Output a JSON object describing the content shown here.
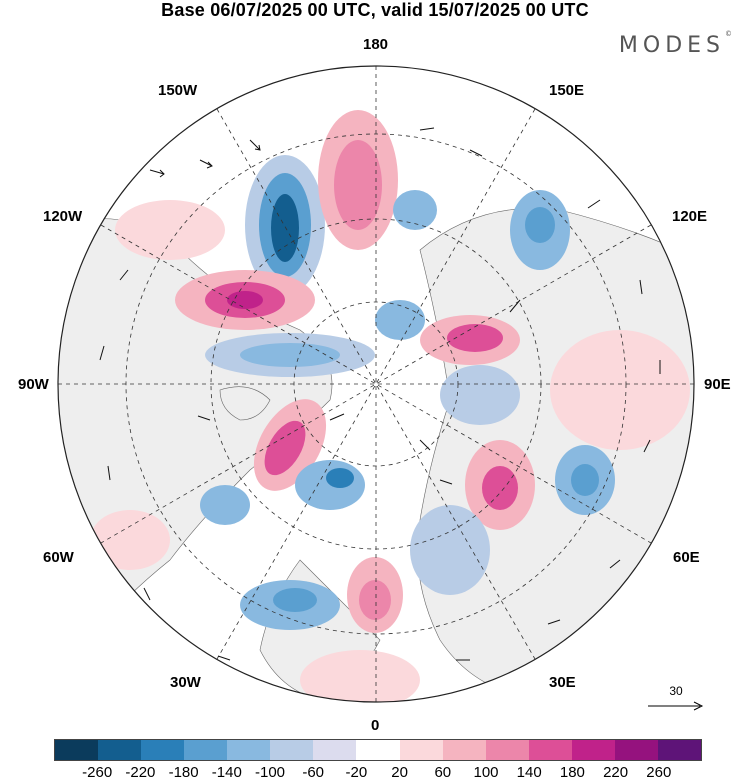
{
  "title": "Base 06/07/2025 00 UTC, valid 15/07/2025 00 UTC",
  "logo": "MODES",
  "logo_mark": "©",
  "longitude_labels": {
    "top": "180",
    "bottom": "0",
    "left": "90W",
    "right": "90E",
    "upper_left_1": "150W",
    "upper_left_2": "120W",
    "upper_right_1": "150E",
    "upper_right_2": "120E",
    "lower_left_1": "60W",
    "lower_left_2": "30W",
    "lower_right_1": "60E",
    "lower_right_2": "30E"
  },
  "reference_vector": "30",
  "colorbar": {
    "colors": [
      "#0b3b5c",
      "#135e8f",
      "#2a7fb8",
      "#5a9fd0",
      "#89b9e0",
      "#b8cce6",
      "#dcdcee",
      "#ffffff",
      "#fbd9dc",
      "#f5b4c0",
      "#ec86aa",
      "#dd4f97",
      "#c0228a",
      "#95127e",
      "#5e1478"
    ],
    "tick_labels": [
      "-260",
      "-220",
      "-180",
      "-140",
      "-100",
      "-60",
      "-20",
      "20",
      "60",
      "100",
      "140",
      "180",
      "220",
      "260"
    ]
  }
}
